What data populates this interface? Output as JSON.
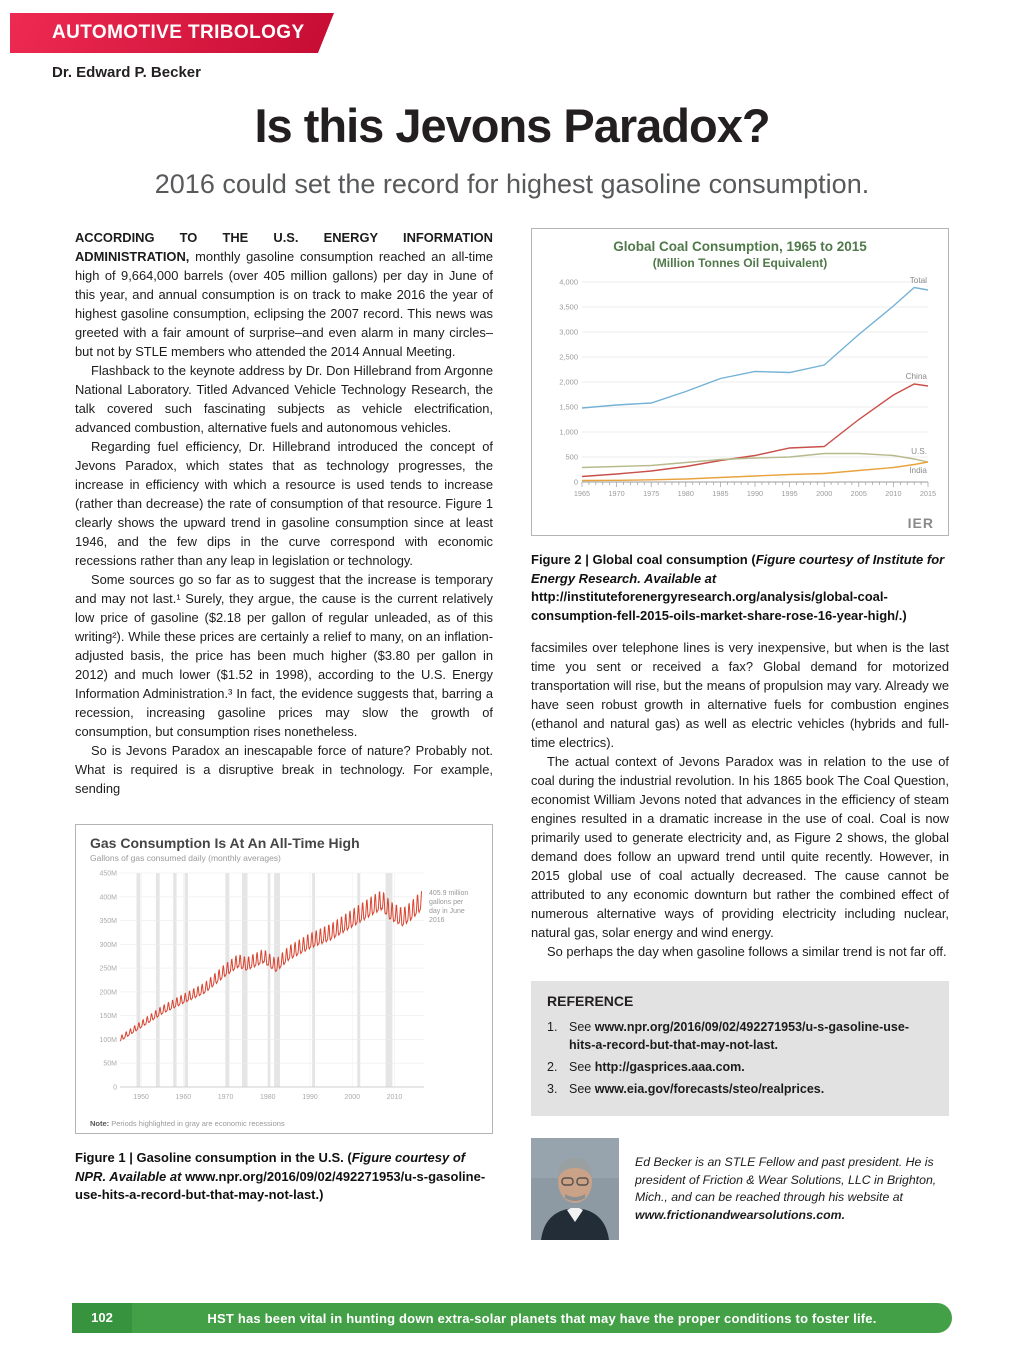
{
  "banner": {
    "label": "AUTOMOTIVE TRIBOLOGY"
  },
  "author": "Dr. Edward P. Becker",
  "title": "Is this Jevons Paradox?",
  "subtitle": "2016 could set the record for highest gasoline consumption.",
  "article": {
    "left": [
      {
        "lead": "ACCORDING TO THE U.S. ENERGY INFORMATION ADMINISTRATION,",
        "text": " monthly gasoline consumption reached an all-time high of 9,664,000 barrels (over 405 million gallons) per day in June of this year, and annual consumption is on track to make 2016 the year of highest gasoline consumption, eclipsing the 2007 record. This news was greeted with a fair amount of surprise–and even alarm in many circles–but not by STLE members who attended the 2014 Annual Meeting."
      },
      {
        "indent": true,
        "text": "Flashback to the keynote address by Dr. Don Hillebrand from Argonne National Laboratory. Titled Advanced Vehicle Technology Research, the talk covered such fascinating subjects as vehicle electrification, advanced combustion, alternative fuels and autonomous vehicles."
      },
      {
        "indent": true,
        "text": "Regarding fuel efficiency, Dr. Hillebrand introduced the concept of Jevons Paradox, which states that as technology progresses, the increase in efficiency with which a resource is used tends to increase (rather than decrease) the rate of consumption of that resource. Figure 1 clearly shows the upward trend in gasoline consumption since at least 1946, and the few dips in the curve correspond with economic recessions rather than any leap in legislation or technology."
      },
      {
        "indent": true,
        "text": "Some sources go so far as to suggest that the increase is temporary and may not last.¹ Surely, they argue, the cause is the current relatively low price of gasoline ($2.18 per gallon of regular unleaded, as of this writing²). While these prices are certainly a relief to many, on an inflation-adjusted basis, the price has been much higher ($3.80 per gallon in 2012) and much lower ($1.52 in 1998), according to the U.S. Energy Information Administration.³ In fact, the evidence suggests that, barring a recession, increasing gasoline prices may slow the growth of consumption, but consumption rises nonetheless."
      },
      {
        "indent": true,
        "text": "So is Jevons Paradox an inescapable force of nature? Probably not. What is required is a disruptive break in technology. For example, sending"
      }
    ],
    "right": [
      {
        "text": "facsimiles over telephone lines is very inexpensive, but when is the last time you sent or received a fax? Global demand for motorized transportation will rise, but the means of propulsion may vary. Already we have seen robust growth in alternative fuels for combustion engines (ethanol and natural gas) as well as electric vehicles (hybrids and full-time electrics)."
      },
      {
        "indent": true,
        "text": "The actual context of Jevons Paradox was in relation to the use of coal during the industrial revolution. In his 1865 book The Coal Question, economist William Jevons noted that advances in the efficiency of steam engines resulted in a dramatic increase in the use of coal. Coal is now primarily used to generate electricity and, as Figure 2 shows, the global demand does follow an upward trend until quite recently. However, in 2015 global use of coal actually decreased. The cause cannot be attributed to any economic downturn but rather the combined effect of numerous alternative ways of providing electricity including nuclear, natural gas, solar energy and wind energy."
      },
      {
        "indent": true,
        "text": "So perhaps the day when gasoline follows a similar trend is not far off."
      }
    ]
  },
  "figure2": {
    "caption": [
      {
        "t": "Figure 2",
        "b": 1
      },
      {
        "t": "  |  ",
        "b": 1
      },
      {
        "t": "Global coal consumption (",
        "b": 1
      },
      {
        "t": "Figure courtesy of Institute for Energy Research. Available at ",
        "b": 1,
        "i": 1
      },
      {
        "t": "http://instituteforenergyresearch.org/analysis/global-coal-consumption-fell-2015-oils-market-share-rose-16-year-high/",
        "b": 1
      },
      {
        "t": ".)",
        "b": 1
      }
    ]
  },
  "figure1": {
    "caption": [
      {
        "t": "Figure 1",
        "b": 1
      },
      {
        "t": "  |  ",
        "b": 1
      },
      {
        "t": "Gasoline consumption in the U.S. (",
        "b": 1
      },
      {
        "t": "Figure courtesy of NPR. Available at ",
        "b": 1,
        "i": 1
      },
      {
        "t": "www.npr.org/2016/09/02/492271953/u-s-gasoline-use-hits-a-record-but-that-may-not-last",
        "b": 1
      },
      {
        "t": ".)",
        "b": 1
      }
    ]
  },
  "reference": {
    "title": "REFERENCE",
    "items": [
      {
        "num": "1.",
        "pre": "See ",
        "link": "www.npr.org/2016/09/02/492271953/u-s-gasoline-use-hits-a-record-but-that-may-not-last."
      },
      {
        "num": "2.",
        "pre": "See ",
        "link": "http://gasprices.aaa.com."
      },
      {
        "num": "3.",
        "pre": "See ",
        "link": "www.eia.gov/forecasts/steo/realprices."
      }
    ]
  },
  "bio": {
    "text": "Ed Becker is an STLE Fellow and past president. He is president of Friction & Wear Solutions, LLC in Brighton, Mich., and can be reached through his website at ",
    "site": "www.frictionandwearsolutions.com."
  },
  "footer": {
    "page": "102",
    "text": "HST has been vital in hunting down extra-solar planets that may have the proper conditions to foster life."
  },
  "colors": {
    "banner": "#d5103c",
    "footer": "#43a047",
    "gas_line": "#d9432f"
  },
  "chart_data": [
    {
      "type": "line",
      "title": "Global Coal Consumption, 1965 to 2015",
      "subtitle": "(Million Tonnes Oil Equivalent)",
      "attribution": "IER",
      "x": [
        1965,
        1970,
        1975,
        1980,
        1985,
        1990,
        1995,
        2000,
        2005,
        2010,
        2013,
        2015
      ],
      "series": [
        {
          "name": "Total",
          "color": "#74b2d6",
          "values": [
            1480,
            1540,
            1580,
            1810,
            2070,
            2210,
            2190,
            2340,
            2950,
            3520,
            3890,
            3840
          ]
        },
        {
          "name": "China",
          "color": "#c9504a",
          "values": [
            110,
            160,
            220,
            310,
            430,
            530,
            680,
            710,
            1250,
            1740,
            1960,
            1920
          ]
        },
        {
          "name": "U.S.",
          "color": "#b7ba8c",
          "values": [
            290,
            310,
            330,
            390,
            450,
            480,
            500,
            570,
            570,
            530,
            460,
            400
          ]
        },
        {
          "name": "India",
          "color": "#e8a33d",
          "values": [
            30,
            35,
            45,
            60,
            90,
            120,
            150,
            170,
            230,
            290,
            350,
            400
          ]
        }
      ],
      "ylim": [
        0,
        4000
      ],
      "ytick_step": 500,
      "xticks": [
        1965,
        1970,
        1975,
        1980,
        1985,
        1990,
        1995,
        2000,
        2005,
        2010,
        2015
      ],
      "grid": true,
      "legend_position": "line-end-labels"
    },
    {
      "type": "line",
      "title": "Gas Consumption Is At An All-Time High",
      "subtitle": "Gallons of gas consumed daily (monthly averages)",
      "x": [
        1945,
        1950,
        1955,
        1960,
        1965,
        1970,
        1973,
        1975,
        1979,
        1982,
        1985,
        1990,
        1995,
        2000,
        2005,
        2007,
        2009,
        2012,
        2014,
        2016.5
      ],
      "values": [
        100,
        130,
        160,
        183,
        205,
        243,
        262,
        255,
        272,
        252,
        278,
        303,
        322,
        350,
        378,
        388,
        366,
        352,
        366,
        388
      ],
      "line_color": "#d9432f",
      "annotation": "405.9 million gallons per day in June 2016",
      "note_prefix": "Note:",
      "note": " Periods highlighted in gray are economic recessions",
      "recessions": [
        [
          1948.9,
          1949.8
        ],
        [
          1953.5,
          1954.4
        ],
        [
          1957.6,
          1958.4
        ],
        [
          1960.3,
          1961.1
        ],
        [
          1969.9,
          1970.9
        ],
        [
          1973.9,
          1975.2
        ],
        [
          1980.0,
          1980.6
        ],
        [
          1981.5,
          1982.9
        ],
        [
          1990.5,
          1991.2
        ],
        [
          2001.2,
          2001.9
        ],
        [
          2007.9,
          2009.5
        ]
      ],
      "ylim": [
        0,
        450
      ],
      "yticks": [
        "0",
        "50M",
        "100M",
        "150M",
        "200M",
        "250M",
        "300M",
        "350M",
        "400M",
        "450M"
      ],
      "xticks": [
        1950,
        1960,
        1970,
        1980,
        1990,
        2000,
        2010
      ],
      "grid": true
    }
  ]
}
